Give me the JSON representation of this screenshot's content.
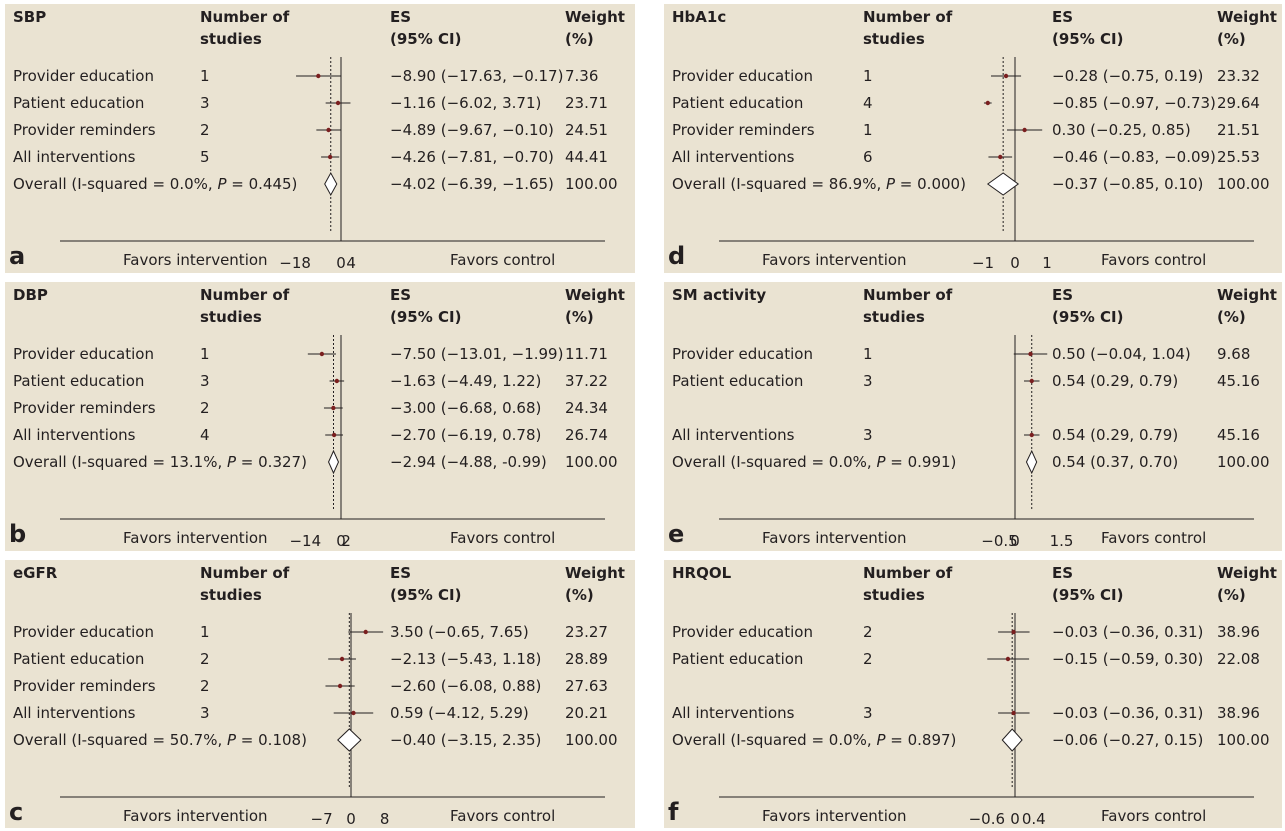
{
  "column_headers": {
    "studies_line1": "Number of",
    "studies_line2": "studies",
    "es_line1": "ES",
    "es_line2": "(95% CI)",
    "weight_line1": "Weight",
    "weight_line2": "(%)"
  },
  "axis_text": {
    "favors_intervention": "Favors intervention",
    "favors_control": "Favors control"
  },
  "chart_data": [
    {
      "type": "forest",
      "panel_label": "a",
      "title": "SBP",
      "axis_ticks": [
        "−18",
        "0",
        "4"
      ],
      "axis_tick_values": [
        -18,
        0,
        4
      ],
      "rows": [
        {
          "label": "Provider education",
          "n": "1",
          "es": -8.9,
          "lo": -17.63,
          "hi": -0.17,
          "ci_text": "−8.90 (−17.63, −0.17)",
          "weight": "7.36"
        },
        {
          "label": "Patient education",
          "n": "3",
          "es": -1.16,
          "lo": -6.02,
          "hi": 3.71,
          "ci_text": "−1.16 (−6.02, 3.71)",
          "weight": "23.71"
        },
        {
          "label": "Provider reminders",
          "n": "2",
          "es": -4.89,
          "lo": -9.67,
          "hi": -0.1,
          "ci_text": "−4.89 (−9.67, −0.10)",
          "weight": "24.51"
        },
        {
          "label": "All interventions",
          "n": "5",
          "es": -4.26,
          "lo": -7.81,
          "hi": -0.7,
          "ci_text": "−4.26 (−7.81, −0.70)",
          "weight": "44.41"
        }
      ],
      "overall": {
        "label_prefix": "Overall (I-squared = 0.0%, ",
        "p_letter": "P",
        "label_suffix": " = 0.445)",
        "es": -4.02,
        "lo": -6.39,
        "hi": -1.65,
        "ci_text": "−4.02 (−6.39, −1.65)",
        "weight": "100.00"
      }
    },
    {
      "type": "forest",
      "panel_label": "b",
      "title": "DBP",
      "axis_ticks": [
        "−14",
        "0",
        "2"
      ],
      "axis_tick_values": [
        -14,
        0,
        2
      ],
      "rows": [
        {
          "label": "Provider education",
          "n": "1",
          "es": -7.5,
          "lo": -13.01,
          "hi": -1.99,
          "ci_text": "−7.50 (−13.01, −1.99)",
          "weight": "11.71"
        },
        {
          "label": "Patient education",
          "n": "3",
          "es": -1.63,
          "lo": -4.49,
          "hi": 1.22,
          "ci_text": "−1.63 (−4.49, 1.22)",
          "weight": "37.22"
        },
        {
          "label": "Provider reminders",
          "n": "2",
          "es": -3.0,
          "lo": -6.68,
          "hi": 0.68,
          "ci_text": "−3.00 (−6.68, 0.68)",
          "weight": "24.34"
        },
        {
          "label": "All interventions",
          "n": "4",
          "es": -2.7,
          "lo": -6.19,
          "hi": 0.78,
          "ci_text": "−2.70 (−6.19, 0.78)",
          "weight": "26.74"
        }
      ],
      "overall": {
        "label_prefix": "Overall (I-squared = 13.1%, ",
        "p_letter": "P",
        "label_suffix": " = 0.327)",
        "es": -2.94,
        "lo": -4.88,
        "hi": -0.99,
        "ci_text": "−2.94 (−4.88, -0.99)",
        "weight": "100.00"
      }
    },
    {
      "type": "forest",
      "panel_label": "c",
      "title": "eGFR",
      "axis_ticks": [
        "−7",
        "0",
        "8"
      ],
      "axis_tick_values": [
        -7,
        0,
        8
      ],
      "rows": [
        {
          "label": "Provider education",
          "n": "1",
          "es": 3.5,
          "lo": -0.65,
          "hi": 7.65,
          "ci_text": "3.50 (−0.65, 7.65)",
          "weight": "23.27"
        },
        {
          "label": "Patient education",
          "n": "2",
          "es": -2.13,
          "lo": -5.43,
          "hi": 1.18,
          "ci_text": "−2.13 (−5.43, 1.18)",
          "weight": "28.89"
        },
        {
          "label": "Provider reminders",
          "n": "2",
          "es": -2.6,
          "lo": -6.08,
          "hi": 0.88,
          "ci_text": "−2.60 (−6.08, 0.88)",
          "weight": "27.63"
        },
        {
          "label": "All interventions",
          "n": "3",
          "es": 0.59,
          "lo": -4.12,
          "hi": 5.29,
          "ci_text": "0.59 (−4.12, 5.29)",
          "weight": "20.21"
        }
      ],
      "overall": {
        "label_prefix": "Overall (I-squared = 50.7%, ",
        "p_letter": "P",
        "label_suffix": " = 0.108)",
        "es": -0.4,
        "lo": -3.15,
        "hi": 2.35,
        "ci_text": "−0.40 (−3.15, 2.35)",
        "weight": "100.00"
      }
    },
    {
      "type": "forest",
      "panel_label": "d",
      "title": "HbA1c",
      "axis_ticks": [
        "−1",
        "0",
        "1"
      ],
      "axis_tick_values": [
        -1,
        0,
        1
      ],
      "rows": [
        {
          "label": "Provider education",
          "n": "1",
          "es": -0.28,
          "lo": -0.75,
          "hi": 0.19,
          "ci_text": "−0.28 (−0.75, 0.19)",
          "weight": "23.32"
        },
        {
          "label": "Patient education",
          "n": "4",
          "es": -0.85,
          "lo": -0.97,
          "hi": -0.73,
          "ci_text": "−0.85 (−0.97, −0.73)",
          "weight": "29.64"
        },
        {
          "label": "Provider reminders",
          "n": "1",
          "es": 0.3,
          "lo": -0.25,
          "hi": 0.85,
          "ci_text": "0.30 (−0.25, 0.85)",
          "weight": "21.51"
        },
        {
          "label": "All interventions",
          "n": "6",
          "es": -0.46,
          "lo": -0.83,
          "hi": -0.09,
          "ci_text": "−0.46 (−0.83, −0.09)",
          "weight": "25.53"
        }
      ],
      "overall": {
        "label_prefix": "Overall (I-squared = 86.9%, ",
        "p_letter": "P",
        "label_suffix": " = 0.000)",
        "es": -0.37,
        "lo": -0.85,
        "hi": 0.1,
        "ci_text": "−0.37 (−0.85, 0.10)",
        "weight": "100.00"
      }
    },
    {
      "type": "forest",
      "panel_label": "e",
      "title": "SM activity",
      "axis_ticks": [
        "−0.5",
        "0",
        "1.5"
      ],
      "axis_tick_values": [
        -0.5,
        0,
        1.5
      ],
      "rows": [
        {
          "label": "Provider education",
          "n": "1",
          "es": 0.5,
          "lo": -0.04,
          "hi": 1.04,
          "ci_text": "0.50 (−0.04, 1.04)",
          "weight": "9.68"
        },
        {
          "label": "Patient education",
          "n": "3",
          "es": 0.54,
          "lo": 0.29,
          "hi": 0.79,
          "ci_text": "0.54 (0.29, 0.79)",
          "weight": "45.16"
        },
        {
          "label": "All interventions",
          "n": "3",
          "es": 0.54,
          "lo": 0.29,
          "hi": 0.79,
          "ci_text": "0.54 (0.29, 0.79)",
          "weight": "45.16",
          "skip_slot": true
        }
      ],
      "overall": {
        "label_prefix": "Overall (I-squared = 0.0%, ",
        "p_letter": "P",
        "label_suffix": " = 0.991)",
        "es": 0.54,
        "lo": 0.37,
        "hi": 0.7,
        "ci_text": "0.54 (0.37, 0.70)",
        "weight": "100.00"
      }
    },
    {
      "type": "forest",
      "panel_label": "f",
      "title": "HRQOL",
      "axis_ticks": [
        "−0.6",
        "0",
        "0.4"
      ],
      "axis_tick_values": [
        -0.6,
        0,
        0.4
      ],
      "rows": [
        {
          "label": "Provider education",
          "n": "2",
          "es": -0.03,
          "lo": -0.36,
          "hi": 0.31,
          "ci_text": "−0.03 (−0.36, 0.31)",
          "weight": "38.96"
        },
        {
          "label": "Patient education",
          "n": "2",
          "es": -0.15,
          "lo": -0.59,
          "hi": 0.3,
          "ci_text": "−0.15 (−0.59, 0.30)",
          "weight": "22.08"
        },
        {
          "label": "All interventions",
          "n": "3",
          "es": -0.03,
          "lo": -0.36,
          "hi": 0.31,
          "ci_text": "−0.03 (−0.36, 0.31)",
          "weight": "38.96",
          "skip_slot": true
        }
      ],
      "overall": {
        "label_prefix": "Overall (I-squared = 0.0%, ",
        "p_letter": "P",
        "label_suffix": " = 0.897)",
        "es": -0.06,
        "lo": -0.27,
        "hi": 0.15,
        "ci_text": "−0.06 (−0.27, 0.15)",
        "weight": "100.00"
      }
    }
  ]
}
